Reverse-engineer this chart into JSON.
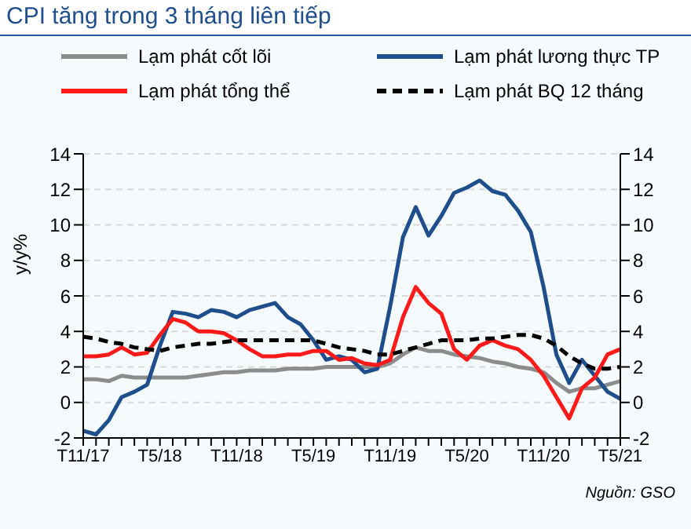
{
  "chart_data": {
    "type": "line",
    "title": "CPI tăng trong 3 tháng liên tiếp",
    "ylabel": "y/y%",
    "categories": [
      "T11/17",
      null,
      null,
      null,
      null,
      null,
      "T5/18",
      null,
      null,
      null,
      null,
      null,
      "T11/18",
      null,
      null,
      null,
      null,
      null,
      "T5/19",
      null,
      null,
      null,
      null,
      null,
      "T11/19",
      null,
      null,
      null,
      null,
      null,
      "T5/20",
      null,
      null,
      null,
      null,
      null,
      "T11/20",
      null,
      null,
      null,
      null,
      null,
      "T5/21"
    ],
    "series": [
      {
        "name": "Lạm phát cốt lõi",
        "color": "#8c8c8c",
        "values": [
          1.3,
          1.3,
          1.2,
          1.5,
          1.4,
          1.4,
          1.4,
          1.4,
          1.4,
          1.5,
          1.6,
          1.7,
          1.7,
          1.8,
          1.8,
          1.8,
          1.9,
          1.9,
          1.9,
          2.0,
          2.0,
          2.0,
          2.0,
          2.0,
          2.2,
          2.7,
          3.1,
          2.9,
          2.9,
          2.7,
          2.6,
          2.5,
          2.3,
          2.2,
          2.0,
          1.9,
          1.7,
          1.1,
          0.6,
          0.8,
          0.8,
          1.0,
          1.2
        ]
      },
      {
        "name": "Lạm phát lương thực TP",
        "color": "#1f4e8c",
        "values": [
          -1.6,
          -1.8,
          -1.0,
          0.3,
          0.6,
          1.0,
          3.2,
          5.1,
          5.0,
          4.8,
          5.2,
          5.1,
          4.8,
          5.2,
          5.4,
          5.6,
          4.8,
          4.4,
          3.5,
          2.4,
          2.6,
          2.4,
          1.7,
          1.9,
          5.4,
          9.3,
          11.0,
          9.4,
          10.5,
          11.8,
          12.1,
          12.5,
          11.9,
          11.7,
          10.8,
          9.6,
          6.5,
          2.7,
          1.1,
          2.4,
          1.5,
          0.6,
          0.2
        ]
      },
      {
        "name": "Lạm phát tổng thể",
        "color": "#ff1a1a",
        "values": [
          2.6,
          2.6,
          2.7,
          3.1,
          2.7,
          2.8,
          3.8,
          4.7,
          4.5,
          4.0,
          4.0,
          3.9,
          3.5,
          3.0,
          2.6,
          2.6,
          2.7,
          2.7,
          2.9,
          2.9,
          2.4,
          2.5,
          2.2,
          2.1,
          2.4,
          4.8,
          6.5,
          5.6,
          5.0,
          3.0,
          2.4,
          3.2,
          3.5,
          3.2,
          3.0,
          2.4,
          1.5,
          0.3,
          -0.9,
          0.8,
          1.4,
          2.7,
          3.0
        ]
      },
      {
        "name": "Lạm phát BQ 12 tháng",
        "color": "#000000",
        "line_style": "dashed",
        "values": [
          3.7,
          3.6,
          3.4,
          3.3,
          3.1,
          3.0,
          2.9,
          3.1,
          3.2,
          3.3,
          3.3,
          3.4,
          3.5,
          3.5,
          3.5,
          3.5,
          3.5,
          3.5,
          3.5,
          3.3,
          3.1,
          3.0,
          2.9,
          2.7,
          2.7,
          2.9,
          3.1,
          3.3,
          3.5,
          3.5,
          3.5,
          3.6,
          3.6,
          3.7,
          3.8,
          3.8,
          3.6,
          3.2,
          2.6,
          2.2,
          1.9,
          1.9,
          2.0
        ]
      }
    ],
    "ylim": [
      -2,
      14
    ],
    "yticks": [
      -2,
      0,
      2,
      4,
      6,
      8,
      10,
      12,
      14
    ],
    "y2lim": [
      -2,
      14
    ],
    "y2ticks": [
      -2,
      0,
      2,
      4,
      6,
      8,
      10,
      12,
      14
    ],
    "grid": "y",
    "legend": "top",
    "marker": "none",
    "line_style": "solid",
    "annotations": [
      "Nguồn: GSO"
    ]
  }
}
